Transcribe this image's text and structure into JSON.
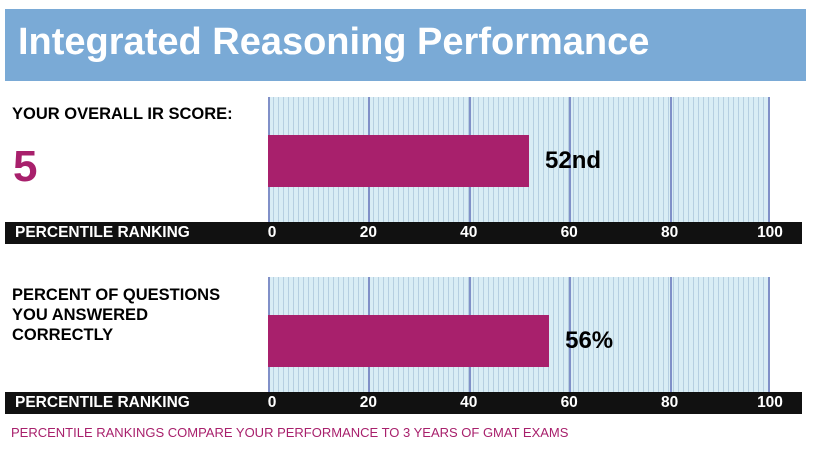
{
  "header": {
    "title": "Integrated Reasoning Performance"
  },
  "colors": {
    "header_bg": "#7aaad6",
    "bar": "#a8206c",
    "accent_text": "#a8206c",
    "plot_bg": "#d9edf5",
    "axis_band": "#111111"
  },
  "footnote": "PERCENTILE RANKINGS COMPARE YOUR PERFORMANCE TO 3 YEARS OF GMAT EXAMS",
  "chart_data": [
    {
      "type": "bar",
      "orientation": "horizontal",
      "left_label": "YOUR OVERALL IR SCORE:",
      "score": "5",
      "value": 52,
      "value_label": "52nd",
      "xlabel": "PERCENTILE RANKING",
      "xlim": [
        0,
        100
      ],
      "ticks": [
        "0",
        "20",
        "40",
        "60",
        "80",
        "100"
      ],
      "grid": true
    },
    {
      "type": "bar",
      "orientation": "horizontal",
      "left_label_lines": [
        "PERCENT OF QUESTIONS",
        "YOU ANSWERED",
        "CORRECTLY"
      ],
      "value": 56,
      "value_label": "56%",
      "xlabel": "PERCENTILE RANKING",
      "xlim": [
        0,
        100
      ],
      "ticks": [
        "0",
        "20",
        "40",
        "60",
        "80",
        "100"
      ],
      "grid": true
    }
  ]
}
